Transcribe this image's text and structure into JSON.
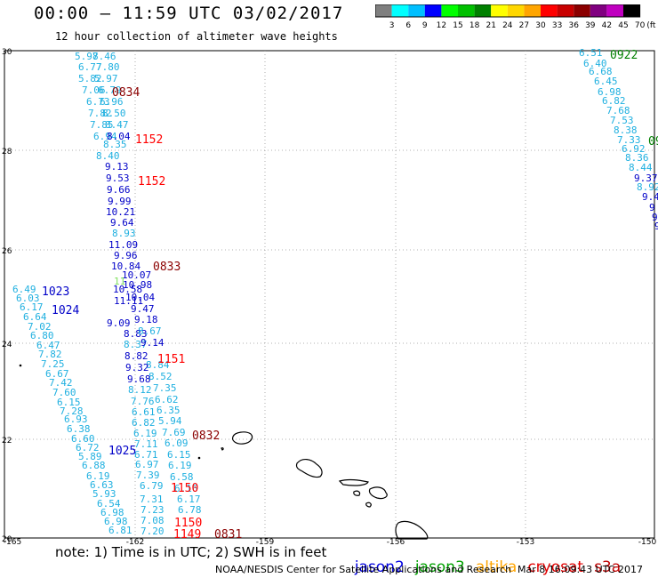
{
  "header": {
    "title": "00:00 – 11:59 UTC 03/02/2017",
    "subtitle": "12 hour collection of altimeter wave heights"
  },
  "legend": {
    "ticks": [
      "3",
      "6",
      "9",
      "12",
      "15",
      "18",
      "21",
      "24",
      "27",
      "30",
      "33",
      "36",
      "39",
      "42",
      "45",
      "70",
      "(ft)"
    ],
    "colors": [
      "#7f7f7f",
      "#00ffff",
      "#00bfff",
      "#0000ff",
      "#00ff00",
      "#00c000",
      "#008000",
      "#ffff00",
      "#ffd700",
      "#ffa500",
      "#ff0000",
      "#c80000",
      "#8b0000",
      "#800080",
      "#c000c0",
      "#000000"
    ]
  },
  "map": {
    "lat_ticks": [
      "30",
      "28",
      "26",
      "24",
      "22",
      "20"
    ],
    "lon_ticks": [
      "-165",
      "-162",
      "-159",
      "-156",
      "-153",
      "-150"
    ]
  },
  "track_values": [
    [
      "5.97",
      84,
      63,
      "#20b0e0"
    ],
    [
      "8.46",
      104,
      63,
      "#20b0e0"
    ],
    [
      "6.77",
      88,
      75,
      "#20b0e0"
    ],
    [
      "7.80",
      108,
      75,
      "#20b0e0"
    ],
    [
      "5.82",
      88,
      88,
      "#20b0e0"
    ],
    [
      "5.97",
      106,
      88,
      "#20b0e0"
    ],
    [
      "7.06",
      92,
      101,
      "#20b0e0"
    ],
    [
      "6.79",
      110,
      101,
      "#20b0e0"
    ],
    [
      "6.73",
      97,
      114,
      "#20b0e0"
    ],
    [
      "6.96",
      112,
      114,
      "#20b0e0"
    ],
    [
      "7.82",
      99,
      127,
      "#20b0e0"
    ],
    [
      "8.50",
      115,
      127,
      "#20b0e0"
    ],
    [
      "7.85",
      101,
      140,
      "#20b0e0"
    ],
    [
      "8.47",
      118,
      140,
      "#20b0e0"
    ],
    [
      "6.94",
      105,
      153,
      "#20b0e0"
    ],
    [
      "8.04",
      120,
      153,
      "#0000c8"
    ],
    [
      "8.35",
      116,
      162,
      "#20b0e0"
    ],
    [
      "8.40",
      108,
      175,
      "#20b0e0"
    ],
    [
      "9.13",
      118,
      187,
      "#0000c8"
    ],
    [
      "9.53",
      119,
      200,
      "#0000c8"
    ],
    [
      "9.66",
      120,
      213,
      "#0000c8"
    ],
    [
      "9.99",
      121,
      226,
      "#0000c8"
    ],
    [
      "10.21",
      119,
      238,
      "#0000c8"
    ],
    [
      "9.64",
      124,
      250,
      "#0000c8"
    ],
    [
      "8.93",
      126,
      262,
      "#20b0e0"
    ],
    [
      "11.09",
      122,
      275,
      "#0000c8"
    ],
    [
      "9.96",
      128,
      287,
      "#0000c8"
    ],
    [
      "10.84",
      125,
      299,
      "#0000c8"
    ],
    [
      "10.07",
      137,
      309,
      "#0000c8"
    ],
    [
      "10.98",
      138,
      320,
      "#0000c8"
    ],
    [
      "10.58",
      127,
      325,
      "#0000c8"
    ],
    [
      "10.04",
      141,
      334,
      "#0000c8"
    ],
    [
      "11.11",
      128,
      338,
      "#0000c8"
    ],
    [
      "9.47",
      147,
      347,
      "#0000c8"
    ],
    [
      "9.09",
      120,
      363,
      "#0000c8"
    ],
    [
      "9.18",
      151,
      359,
      "#0000c8"
    ],
    [
      "8.83",
      139,
      375,
      "#0000c8"
    ],
    [
      "8.67",
      155,
      372,
      "#20b0e0"
    ],
    [
      "8.37",
      139,
      387,
      "#20b0e0"
    ],
    [
      "9.14",
      158,
      385,
      "#0000c8"
    ],
    [
      "8.82",
      140,
      400,
      "#0000c8"
    ],
    [
      "8.84",
      164,
      410,
      "#20b0e0"
    ],
    [
      "9.32",
      141,
      413,
      "#0000c8"
    ],
    [
      "8.52",
      167,
      423,
      "#20b0e0"
    ],
    [
      "9.68",
      143,
      426,
      "#0000c8"
    ],
    [
      "7.35",
      172,
      436,
      "#20b0e0"
    ],
    [
      "8.12",
      144,
      438,
      "#20b0e0"
    ],
    [
      "6.62",
      174,
      449,
      "#20b0e0"
    ],
    [
      "7.76",
      147,
      451,
      "#20b0e0"
    ],
    [
      "6.35",
      176,
      461,
      "#20b0e0"
    ],
    [
      "6.61",
      148,
      463,
      "#20b0e0"
    ],
    [
      "5.94",
      178,
      473,
      "#20b0e0"
    ],
    [
      "6.82",
      148,
      475,
      "#20b0e0"
    ],
    [
      "7.69",
      182,
      486,
      "#20b0e0"
    ],
    [
      "6.19",
      150,
      487,
      "#20b0e0"
    ],
    [
      "6.09",
      185,
      498,
      "#20b0e0"
    ],
    [
      "7.11",
      151,
      499,
      "#20b0e0"
    ],
    [
      "6.15",
      188,
      511,
      "#20b0e0"
    ],
    [
      "6.71",
      151,
      511,
      "#20b0e0"
    ],
    [
      "6.19",
      189,
      523,
      "#20b0e0"
    ],
    [
      "6.97",
      152,
      522,
      "#20b0e0"
    ],
    [
      "6.58",
      191,
      536,
      "#20b0e0"
    ],
    [
      "7.39",
      153,
      534,
      "#20b0e0"
    ],
    [
      "6.79",
      157,
      546,
      "#20b0e0"
    ],
    [
      "6.16",
      196,
      549,
      "#20b0e0"
    ],
    [
      "7.31",
      157,
      561,
      "#20b0e0"
    ],
    [
      "6.17",
      199,
      561,
      "#20b0e0"
    ],
    [
      "6.78",
      200,
      573,
      "#20b0e0"
    ],
    [
      "7.23",
      158,
      573,
      "#20b0e0"
    ],
    [
      "7.08",
      158,
      585,
      "#20b0e0"
    ],
    [
      "6.81",
      122,
      596,
      "#20b0e0"
    ],
    [
      "7.20",
      158,
      597,
      "#20b0e0"
    ],
    [
      "6.49",
      14,
      325,
      "#20b0e0"
    ],
    [
      "6.03",
      18,
      335,
      "#20b0e0"
    ],
    [
      "6.17",
      22,
      345,
      "#20b0e0"
    ],
    [
      "6.64",
      26,
      356,
      "#20b0e0"
    ],
    [
      "7.02",
      31,
      367,
      "#20b0e0"
    ],
    [
      "6.80",
      34,
      377,
      "#20b0e0"
    ],
    [
      "6.47",
      41,
      388,
      "#20b0e0"
    ],
    [
      "7.82",
      43,
      398,
      "#20b0e0"
    ],
    [
      "7.25",
      46,
      409,
      "#20b0e0"
    ],
    [
      "6.67",
      51,
      420,
      "#20b0e0"
    ],
    [
      "7.42",
      55,
      430,
      "#20b0e0"
    ],
    [
      "7.60",
      59,
      441,
      "#20b0e0"
    ],
    [
      "6.15",
      64,
      452,
      "#20b0e0"
    ],
    [
      "7.28",
      67,
      462,
      "#20b0e0"
    ],
    [
      "6.93",
      72,
      471,
      "#20b0e0"
    ],
    [
      "6.38",
      75,
      482,
      "#20b0e0"
    ],
    [
      "6.60",
      80,
      493,
      "#20b0e0"
    ],
    [
      "6.72",
      85,
      503,
      "#20b0e0"
    ],
    [
      "5.89",
      88,
      513,
      "#20b0e0"
    ],
    [
      "6.88",
      92,
      523,
      "#20b0e0"
    ],
    [
      "6.19",
      97,
      535,
      "#20b0e0"
    ],
    [
      "6.63",
      101,
      545,
      "#20b0e0"
    ],
    [
      "5.93",
      104,
      555,
      "#20b0e0"
    ],
    [
      "6.54",
      109,
      566,
      "#20b0e0"
    ],
    [
      "6.98",
      113,
      576,
      "#20b0e0"
    ],
    [
      "6.98",
      117,
      586,
      "#20b0e0"
    ],
    [
      "6.51",
      651,
      59,
      "#20b0e0"
    ],
    [
      "6.40",
      656,
      71,
      "#20b0e0"
    ],
    [
      "6.68",
      662,
      80,
      "#20b0e0"
    ],
    [
      "6.45",
      668,
      91,
      "#20b0e0"
    ],
    [
      "6.98",
      672,
      103,
      "#20b0e0"
    ],
    [
      "6.82",
      677,
      113,
      "#20b0e0"
    ],
    [
      "7.68",
      682,
      124,
      "#20b0e0"
    ],
    [
      "7.53",
      686,
      135,
      "#20b0e0"
    ],
    [
      "8.38",
      690,
      146,
      "#20b0e0"
    ],
    [
      "7.33",
      694,
      157,
      "#20b0e0"
    ],
    [
      "6.92",
      699,
      167,
      "#20b0e0"
    ],
    [
      "8.36",
      703,
      177,
      "#20b0e0"
    ],
    [
      "8.44",
      707,
      188,
      "#20b0e0"
    ],
    [
      "9.37",
      713,
      200,
      "#0000c8"
    ],
    [
      "8.92",
      716,
      210,
      "#20b0e0"
    ],
    [
      "9.4",
      722,
      221,
      "#0000c8"
    ],
    [
      "9",
      730,
      233,
      "#0000c8"
    ],
    [
      "9",
      733,
      244,
      "#0000c8"
    ],
    [
      "9",
      736,
      254,
      "#0000c8"
    ],
    [
      "11",
      128,
      316,
      "#80e060"
    ]
  ],
  "time_labels": [
    [
      "0834",
      126,
      104,
      "#8b0000"
    ],
    [
      "1152",
      152,
      157,
      "#ff0000"
    ],
    [
      "1152",
      155,
      204,
      "#ff0000"
    ],
    [
      "0833",
      172,
      300,
      "#8b0000"
    ],
    [
      "1023",
      47,
      328,
      "#0000c8"
    ],
    [
      "1024",
      58,
      349,
      "#0000c8"
    ],
    [
      "1151",
      177,
      404,
      "#ff0000"
    ],
    [
      "0832",
      216,
      490,
      "#8b0000"
    ],
    [
      "1025",
      122,
      507,
      "#0000c8"
    ],
    [
      "1150",
      192,
      549,
      "#ff0000"
    ],
    [
      "1150",
      196,
      588,
      "#ff0000"
    ],
    [
      "1149",
      195,
      601,
      "#ff0000"
    ],
    [
      "0831",
      241,
      601,
      "#8b0000"
    ],
    [
      "0922",
      686,
      62,
      "#008000"
    ],
    [
      "09",
      729,
      159,
      "#008000"
    ]
  ],
  "note": "note: 1) Time is in UTC; 2) SWH is in feet",
  "satellites": [
    {
      "name": "jason2",
      "color": "#0000e0"
    },
    {
      "name": "jason3",
      "color": "#00a000"
    },
    {
      "name": "altika",
      "color": "#ffa500"
    },
    {
      "name": "cryosat",
      "color": "#e00000"
    },
    {
      "name": "s3a",
      "color": "#c00000"
    }
  ],
  "footer": {
    "credit": "NOAA/NESDIS Center for Satellite Applications and Research",
    "timestamp": "Mar  8 16:09:43 UTC 2017"
  }
}
